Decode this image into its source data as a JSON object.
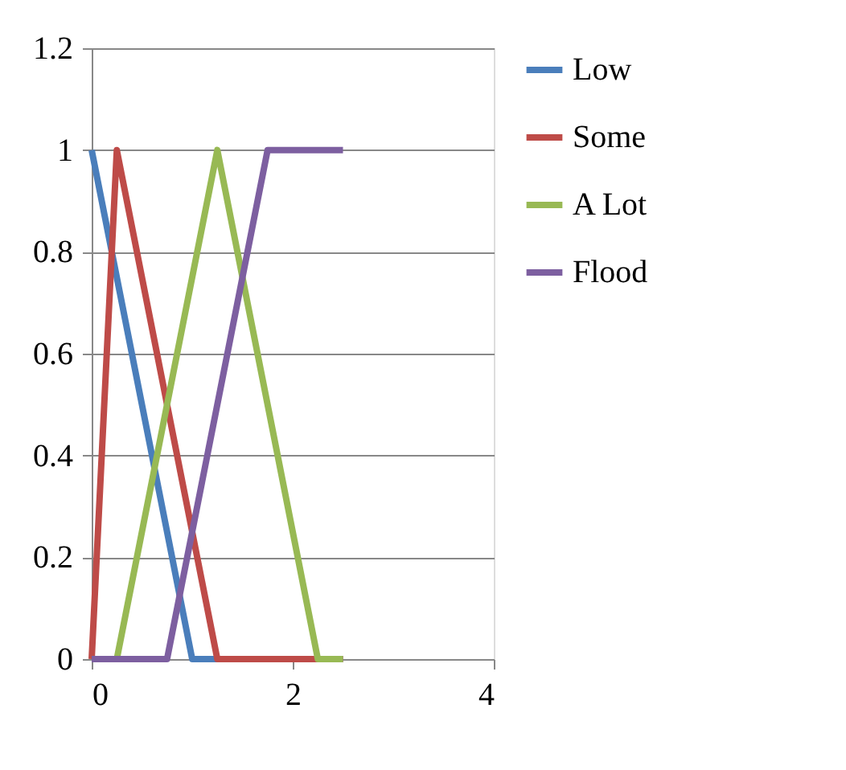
{
  "chart_data": {
    "type": "line",
    "xlim": [
      0,
      4
    ],
    "xticks": [
      0,
      2,
      4
    ],
    "ylim": [
      0,
      1.2
    ],
    "yticks": [
      0,
      0.2,
      0.4,
      0.6,
      0.8,
      1,
      1.2
    ],
    "grid": "y",
    "legend": "right",
    "marker": "none",
    "line_style": "solid",
    "series": [
      {
        "name": "Low",
        "color": "#4a7ebb",
        "x": [
          0,
          1,
          2.5
        ],
        "values": [
          1,
          0,
          0
        ]
      },
      {
        "name": "Some",
        "color": "#be4b48",
        "x": [
          0,
          0.25,
          1.25,
          2.5
        ],
        "values": [
          0,
          1,
          0,
          0
        ]
      },
      {
        "name": "A Lot",
        "color": "#98b954",
        "x": [
          0.25,
          1.25,
          2.25,
          2.5
        ],
        "values": [
          0,
          1,
          0,
          0
        ]
      },
      {
        "name": "Flood",
        "color": "#7d5fa0",
        "x": [
          0,
          0.75,
          1.75,
          2.5
        ],
        "values": [
          0,
          0,
          1,
          1
        ]
      }
    ]
  }
}
